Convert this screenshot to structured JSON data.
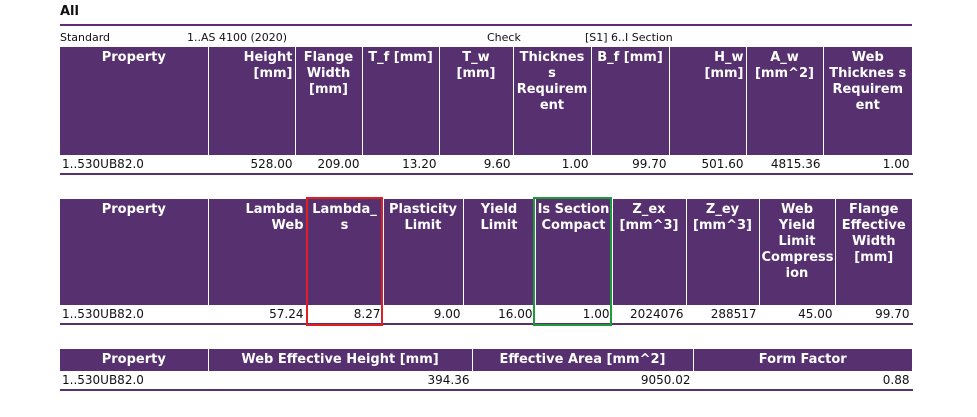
{
  "title": "All",
  "standard_label": "Standard",
  "standard_value": "1..AS 4100 (2020)",
  "check_label": "Check",
  "check_value": "[S1] 6..I Section",
  "table1": {
    "headers": [
      "Property",
      "Height [mm]",
      "Flange Width [mm]",
      "T_f [mm]",
      "T_w [mm]",
      "Thicknes s Requirem ent",
      "B_f [mm]",
      "H_w [mm]",
      "A_w [mm^2]",
      "Web Thicknes s Requirem ent"
    ],
    "row": [
      "1..530UB82.0",
      "528.00",
      "209.00",
      "13.20",
      "9.60",
      "1.00",
      "99.70",
      "501.60",
      "4815.36",
      "1.00"
    ]
  },
  "table2": {
    "headers": [
      "Property",
      "Lambda Web",
      "Lambda_ s",
      "Plasticity Limit",
      "Yield Limit",
      "Is Section Compact",
      "Z_ex [mm^3]",
      "Z_ey [mm^3]",
      "Web Yield Limit Compress ion",
      "Flange Effective Width [mm]"
    ],
    "row": [
      "1..530UB82.0",
      "57.24",
      "8.27",
      "9.00",
      "16.00",
      "1.00",
      "2024076",
      "288517",
      "45.00",
      "99.70"
    ]
  },
  "table3": {
    "headers": [
      "Property",
      "Web Effective Height [mm]",
      "Effective Area [mm^2]",
      "Form Factor"
    ],
    "row": [
      "1..530UB82.0",
      "394.36",
      "9050.02",
      "0.88"
    ]
  },
  "highlights": {
    "red": "#e02020",
    "green": "#1e9a3a"
  }
}
